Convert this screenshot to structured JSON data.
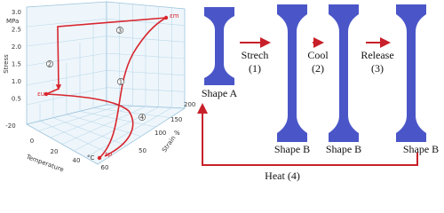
{
  "plot": {
    "stress_ticks": [
      "3.0",
      "2.5",
      "2.0",
      "1.5",
      "1.0",
      "0.5"
    ],
    "stress_unit": "MPa",
    "stress_label": "Stress",
    "temperature_ticks": [
      "-20",
      "0",
      "20",
      "40",
      "60"
    ],
    "temperature_label": "Temperature",
    "temperature_unit": "°C",
    "strain_ticks": [
      "50",
      "100",
      "150",
      "200"
    ],
    "strain_unit": "%",
    "strain_label": "Strain",
    "step_markers": [
      "1",
      "2",
      "3",
      "4"
    ],
    "point_labels": [
      "εm",
      "εu",
      "εp"
    ]
  },
  "steps": [
    {
      "label": "Strech",
      "number": "(1)"
    },
    {
      "label": "Cool",
      "number": "(2)"
    },
    {
      "label": "Release",
      "number": "(3)"
    }
  ],
  "shapes": [
    "Shape A",
    "Shape B",
    "Shape B",
    "Shape B"
  ],
  "heat": "Heat (4)"
}
